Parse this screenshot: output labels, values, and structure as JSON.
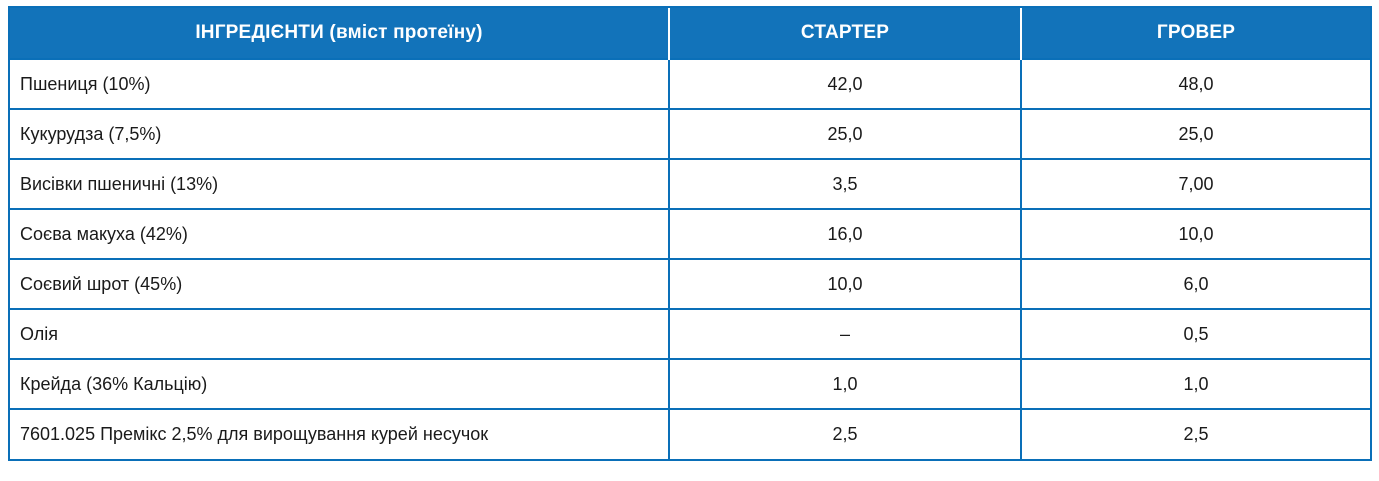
{
  "table": {
    "headers": [
      "ІНГРЕДІЄНТИ (вміст протеїну)",
      "СТАРТЕР",
      "ГРОВЕР"
    ],
    "rows": [
      [
        "Пшениця (10%)",
        "42,0",
        "48,0"
      ],
      [
        "Кукурудза (7,5%)",
        "25,0",
        "25,0"
      ],
      [
        "Висівки пшеничні (13%)",
        "3,5",
        "7,00"
      ],
      [
        "Соєва макуха (42%)",
        "16,0",
        "10,0"
      ],
      [
        "Соєвий шрот (45%)",
        "10,0",
        "6,0"
      ],
      [
        "Олія",
        "–",
        "0,5"
      ],
      [
        "Крейда (36% Кальцію)",
        "1,0",
        "1,0"
      ],
      [
        "7601.025 Премікс 2,5% для вирощування курей несучок",
        "2,5",
        "2,5"
      ]
    ]
  },
  "colors": {
    "header_bg": "#1273ba",
    "border": "#0a6fb8",
    "header_text": "#ffffff",
    "cell_text": "#1a1a1a"
  }
}
